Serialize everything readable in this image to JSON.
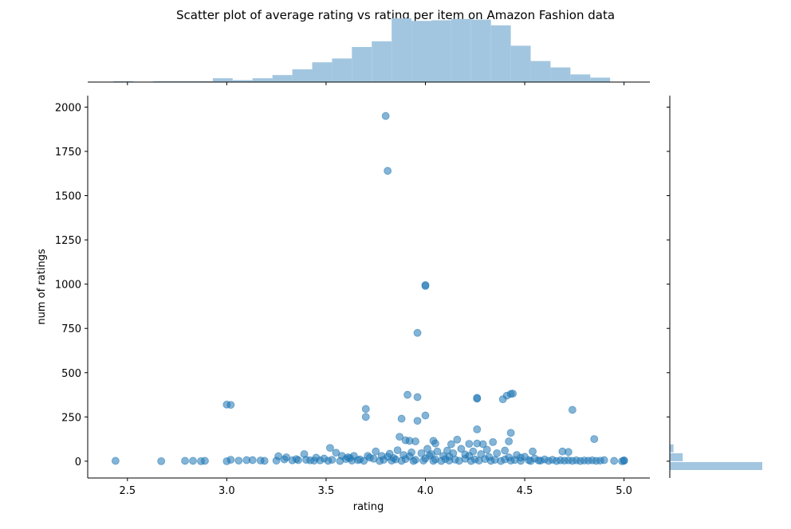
{
  "chart_data": {
    "type": "scatter",
    "title": "Scatter plot of average rating vs rating per item on Amazon Fashion data",
    "xlabel": "rating",
    "ylabel": "num of ratings",
    "xlim": [
      2.3,
      5.13
    ],
    "ylim": [
      -95,
      2065
    ],
    "x_ticks": [
      {
        "value": 2.5,
        "label": "2.5"
      },
      {
        "value": 3.0,
        "label": "3.0"
      },
      {
        "value": 3.5,
        "label": "3.5"
      },
      {
        "value": 4.0,
        "label": "4.0"
      },
      {
        "value": 4.5,
        "label": "4.5"
      },
      {
        "value": 5.0,
        "label": "5.0"
      }
    ],
    "y_ticks": [
      {
        "value": 0,
        "label": "0"
      },
      {
        "value": 250,
        "label": "250"
      },
      {
        "value": 500,
        "label": "500"
      },
      {
        "value": 750,
        "label": "750"
      },
      {
        "value": 1000,
        "label": "1000"
      },
      {
        "value": 1250,
        "label": "1250"
      },
      {
        "value": 1500,
        "label": "1500"
      },
      {
        "value": 1750,
        "label": "1750"
      },
      {
        "value": 2000,
        "label": "2000"
      }
    ],
    "point_color": "#1f77b4",
    "point_alpha": 0.55,
    "hist_color": "#a3c6e0",
    "points": [
      [
        3.8,
        1950
      ],
      [
        3.81,
        1640
      ],
      [
        4.0,
        995
      ],
      [
        4.0,
        990
      ],
      [
        3.96,
        725
      ],
      [
        3.0,
        320
      ],
      [
        3.02,
        318
      ],
      [
        3.7,
        295
      ],
      [
        3.7,
        250
      ],
      [
        3.88,
        240
      ],
      [
        3.91,
        375
      ],
      [
        3.96,
        362
      ],
      [
        3.96,
        228
      ],
      [
        4.0,
        258
      ],
      [
        4.26,
        358
      ],
      [
        4.26,
        353
      ],
      [
        4.39,
        350
      ],
      [
        4.41,
        370
      ],
      [
        4.43,
        380
      ],
      [
        4.44,
        382
      ],
      [
        4.74,
        290
      ],
      [
        4.43,
        160
      ],
      [
        4.26,
        180
      ],
      [
        4.85,
        125
      ],
      [
        3.87,
        138
      ],
      [
        3.9,
        118
      ],
      [
        3.92,
        115
      ],
      [
        3.95,
        112
      ],
      [
        4.04,
        115
      ],
      [
        4.16,
        122
      ],
      [
        4.22,
        98
      ],
      [
        4.26,
        100
      ],
      [
        4.29,
        96
      ],
      [
        4.34,
        108
      ],
      [
        4.42,
        112
      ],
      [
        4.13,
        96
      ],
      [
        4.05,
        100
      ],
      [
        3.52,
        75
      ],
      [
        4.69,
        55
      ],
      [
        4.72,
        52
      ],
      [
        4.54,
        55
      ],
      [
        2.44,
        2
      ],
      [
        2.67,
        0
      ],
      [
        2.79,
        2
      ],
      [
        2.83,
        2
      ],
      [
        2.87,
        0
      ],
      [
        2.89,
        2
      ],
      [
        3.0,
        0
      ],
      [
        3.02,
        8
      ],
      [
        3.06,
        3
      ],
      [
        3.1,
        6
      ],
      [
        3.13,
        6
      ],
      [
        3.17,
        4
      ],
      [
        3.19,
        2
      ],
      [
        3.25,
        3
      ],
      [
        3.26,
        28
      ],
      [
        3.29,
        10
      ],
      [
        3.3,
        22
      ],
      [
        3.33,
        5
      ],
      [
        3.35,
        12
      ],
      [
        3.39,
        40
      ],
      [
        3.42,
        5
      ],
      [
        3.45,
        20
      ],
      [
        3.49,
        15
      ],
      [
        3.55,
        48
      ],
      [
        3.58,
        30
      ],
      [
        3.61,
        22
      ],
      [
        3.64,
        30
      ],
      [
        3.67,
        10
      ],
      [
        3.72,
        20
      ],
      [
        3.75,
        55
      ],
      [
        3.78,
        30
      ],
      [
        3.82,
        42
      ],
      [
        3.84,
        18
      ],
      [
        3.86,
        62
      ],
      [
        3.89,
        35
      ],
      [
        3.93,
        50
      ],
      [
        3.98,
        45
      ],
      [
        4.01,
        70
      ],
      [
        4.03,
        40
      ],
      [
        4.06,
        55
      ],
      [
        4.09,
        30
      ],
      [
        4.11,
        60
      ],
      [
        4.14,
        45
      ],
      [
        4.18,
        70
      ],
      [
        4.2,
        38
      ],
      [
        4.24,
        55
      ],
      [
        4.28,
        40
      ],
      [
        4.31,
        65
      ],
      [
        4.36,
        45
      ],
      [
        4.4,
        60
      ],
      [
        4.46,
        35
      ],
      [
        4.5,
        25
      ],
      [
        4.55,
        15
      ],
      [
        4.6,
        10
      ],
      [
        4.64,
        8
      ],
      [
        4.68,
        5
      ],
      [
        4.72,
        5
      ],
      [
        4.76,
        5
      ],
      [
        4.8,
        4
      ],
      [
        4.84,
        5
      ],
      [
        4.88,
        3
      ],
      [
        4.9,
        6
      ],
      [
        4.95,
        2
      ],
      [
        5.0,
        2
      ],
      [
        5.0,
        5
      ],
      [
        4.99,
        0
      ],
      [
        3.47,
        5
      ],
      [
        3.53,
        8
      ],
      [
        3.6,
        12
      ],
      [
        3.66,
        6
      ],
      [
        3.74,
        14
      ],
      [
        3.79,
        8
      ],
      [
        3.85,
        10
      ],
      [
        3.9,
        12
      ],
      [
        3.95,
        8
      ],
      [
        4.0,
        15
      ],
      [
        4.05,
        10
      ],
      [
        4.1,
        12
      ],
      [
        4.15,
        9
      ],
      [
        4.2,
        14
      ],
      [
        4.25,
        10
      ],
      [
        4.3,
        12
      ],
      [
        4.35,
        8
      ],
      [
        4.4,
        10
      ],
      [
        4.45,
        7
      ],
      [
        4.52,
        6
      ],
      [
        4.57,
        4
      ],
      [
        3.4,
        8
      ],
      [
        3.36,
        6
      ],
      [
        3.44,
        3
      ],
      [
        3.51,
        2
      ],
      [
        3.57,
        1
      ],
      [
        3.63,
        3
      ],
      [
        3.69,
        2
      ],
      [
        3.77,
        1
      ],
      [
        3.83,
        3
      ],
      [
        3.88,
        2
      ],
      [
        3.94,
        1
      ],
      [
        3.99,
        3
      ],
      [
        4.04,
        2
      ],
      [
        4.08,
        1
      ],
      [
        4.12,
        3
      ],
      [
        4.17,
        2
      ],
      [
        4.23,
        1
      ],
      [
        4.27,
        3
      ],
      [
        4.33,
        2
      ],
      [
        4.38,
        1
      ],
      [
        4.43,
        3
      ],
      [
        4.48,
        2
      ],
      [
        4.53,
        1
      ],
      [
        4.58,
        3
      ],
      [
        4.62,
        2
      ],
      [
        4.66,
        1
      ],
      [
        4.7,
        3
      ],
      [
        4.74,
        2
      ],
      [
        4.78,
        1
      ],
      [
        4.82,
        3
      ],
      [
        4.86,
        2
      ],
      [
        3.71,
        30
      ],
      [
        3.81,
        25
      ],
      [
        3.92,
        28
      ],
      [
        4.02,
        32
      ],
      [
        4.12,
        26
      ],
      [
        4.22,
        30
      ],
      [
        4.32,
        24
      ],
      [
        4.42,
        22
      ],
      [
        3.62,
        18
      ],
      [
        4.48,
        20
      ]
    ],
    "x_hist": {
      "bins": [
        2.43,
        2.53,
        2.63,
        2.73,
        2.83,
        2.93,
        3.03,
        3.13,
        3.23,
        3.33,
        3.43,
        3.53,
        3.63,
        3.73,
        3.83,
        3.93,
        4.03,
        4.13,
        4.23,
        4.33,
        4.43,
        4.53,
        4.63,
        4.73,
        4.83,
        4.93
      ],
      "heights": [
        1,
        0,
        1,
        1,
        1,
        6,
        3,
        6,
        11,
        20,
        31,
        37,
        55,
        64,
        100,
        96,
        97,
        99,
        98,
        89,
        57,
        33,
        23,
        12,
        7,
        0
      ]
    },
    "y_hist": {
      "bins": [
        -95,
        -50,
        0,
        50,
        100
      ],
      "widths": [
        0,
        100,
        14,
        4,
        0
      ]
    }
  }
}
